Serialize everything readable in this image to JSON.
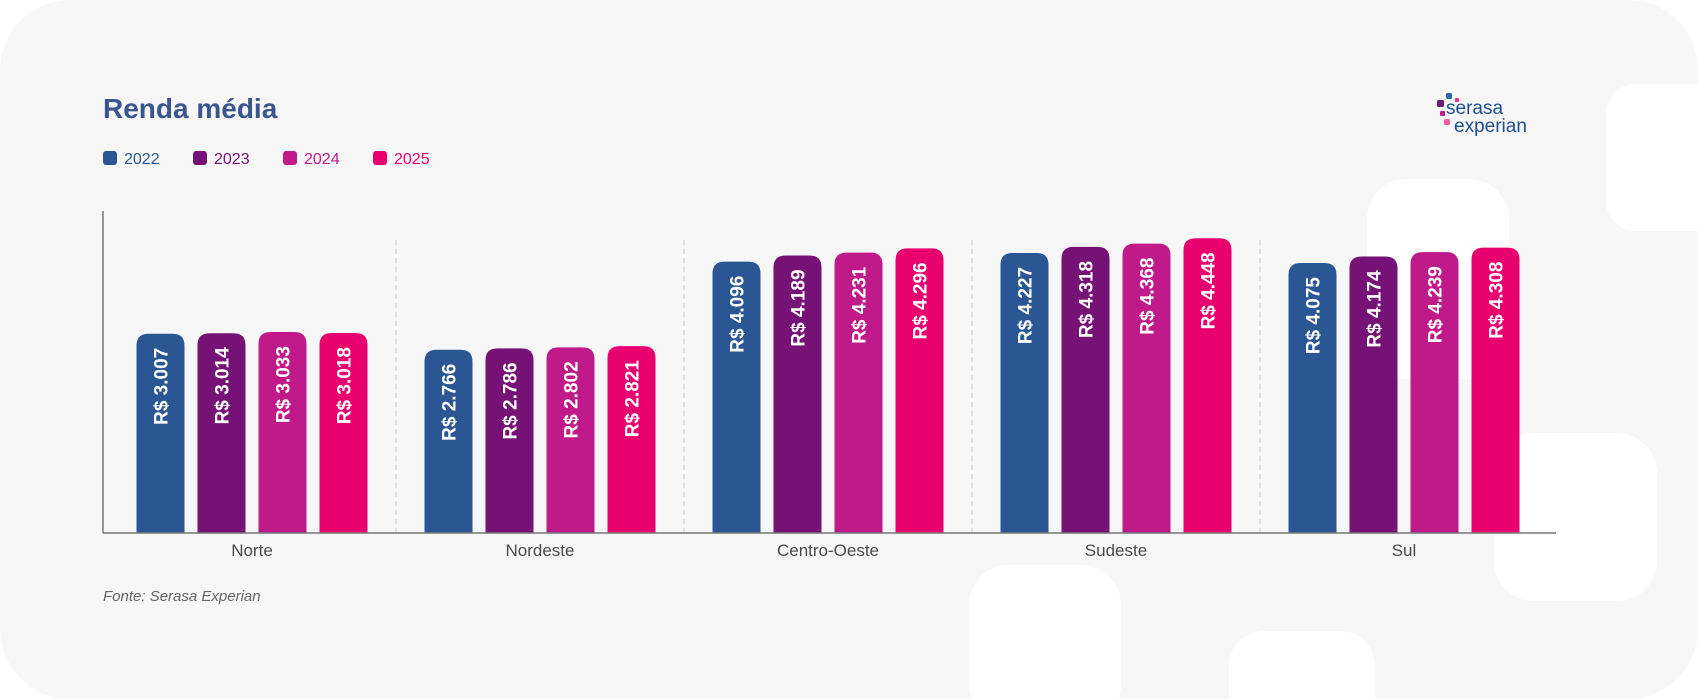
{
  "chart_data": {
    "type": "bar",
    "title": "Renda média",
    "categories": [
      "Norte",
      "Nordeste",
      "Centro-Oeste",
      "Sudeste",
      "Sul"
    ],
    "series": [
      {
        "name": "2022",
        "color": "#2a5694",
        "values": [
          3007,
          2766,
          4096,
          4227,
          4075
        ]
      },
      {
        "name": "2023",
        "color": "#761276",
        "values": [
          3014,
          2786,
          4189,
          4318,
          4174
        ]
      },
      {
        "name": "2024",
        "color": "#c0198a",
        "values": [
          3033,
          2802,
          4231,
          4368,
          4239
        ]
      },
      {
        "name": "2025",
        "color": "#e8006f",
        "values": [
          3018,
          2821,
          4296,
          4448,
          4308
        ]
      }
    ],
    "value_prefix": "R$ ",
    "xlabel": "",
    "ylabel": "",
    "ylim": [
      0,
      4860
    ],
    "grid": false,
    "legend": "top-left",
    "data_labels": "inside-bar-vertical"
  },
  "source": "Fonte: Serasa Experian",
  "logo": {
    "text_line1": "serasa",
    "text_line2": "experian",
    "color": "#1d4f91"
  }
}
